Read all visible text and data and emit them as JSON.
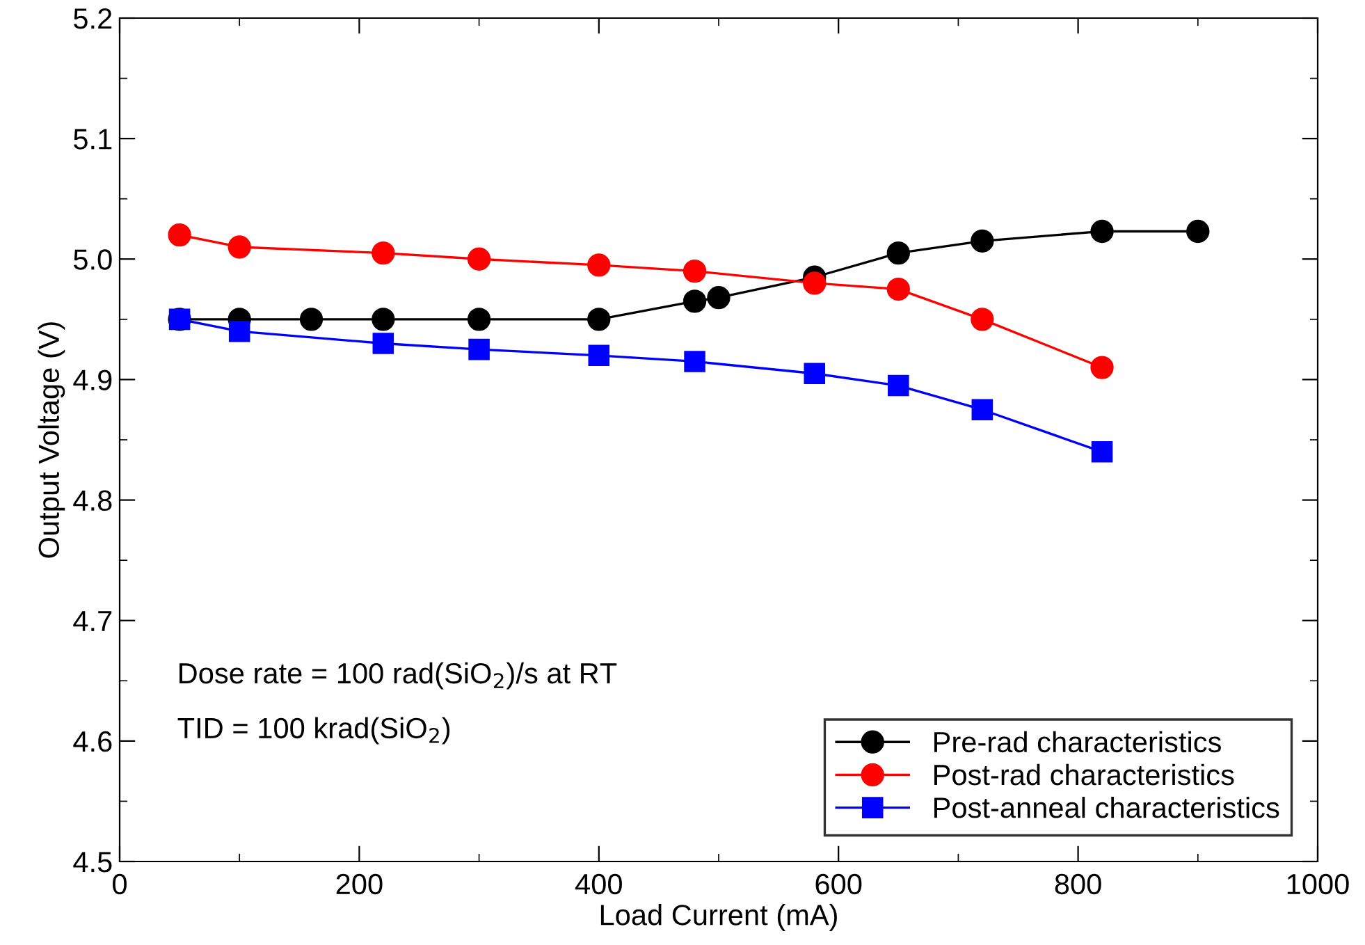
{
  "chart_data": {
    "type": "line",
    "xlabel": "Load Current (mA)",
    "ylabel": "Output Voltage (V)",
    "xlim": [
      0,
      1000
    ],
    "ylim": [
      4.5,
      5.2
    ],
    "xticks": [
      0,
      200,
      400,
      600,
      800,
      1000
    ],
    "yticks": [
      {
        "value": 4.5,
        "label": "4.5"
      },
      {
        "value": 4.6,
        "label": "4.6"
      },
      {
        "value": 4.7,
        "label": "4.7"
      },
      {
        "value": 4.8,
        "label": "4.8"
      },
      {
        "value": 4.9,
        "label": "4.9"
      },
      {
        "value": 5.0,
        "label": "5.0"
      },
      {
        "value": 5.1,
        "label": "5.1"
      },
      {
        "value": 5.2,
        "label": "5.2"
      }
    ],
    "grid": false,
    "legend": "bottom right",
    "line_style": "solid",
    "series": [
      {
        "name": "Pre-rad characteristics",
        "color": "#000000",
        "marker": "circle",
        "x": [
          50,
          100,
          160,
          220,
          300,
          400,
          480,
          500,
          580,
          650,
          720,
          820,
          900
        ],
        "values": [
          4.95,
          4.95,
          4.95,
          4.95,
          4.95,
          4.95,
          4.965,
          4.968,
          4.985,
          5.005,
          5.015,
          5.023,
          5.023
        ]
      },
      {
        "name": "Post-rad characteristics",
        "color": "#ff0000",
        "marker": "circle",
        "x": [
          50,
          100,
          220,
          300,
          400,
          480,
          580,
          650,
          720,
          820
        ],
        "values": [
          5.02,
          5.01,
          5.005,
          5.0,
          4.995,
          4.99,
          4.98,
          4.975,
          4.95,
          4.91
        ]
      },
      {
        "name": "Post-anneal characteristics",
        "color": "#0000ff",
        "marker": "square",
        "x": [
          50,
          100,
          220,
          300,
          400,
          480,
          580,
          650,
          720,
          820
        ],
        "values": [
          4.95,
          4.94,
          4.93,
          4.925,
          4.92,
          4.915,
          4.905,
          4.895,
          4.875,
          4.84
        ]
      }
    ],
    "annotations": [
      "Dose rate = 100 rad(SiO$_{2}$)/s at RT",
      "TID = 100 krad(SiO$_{2}$)"
    ]
  }
}
